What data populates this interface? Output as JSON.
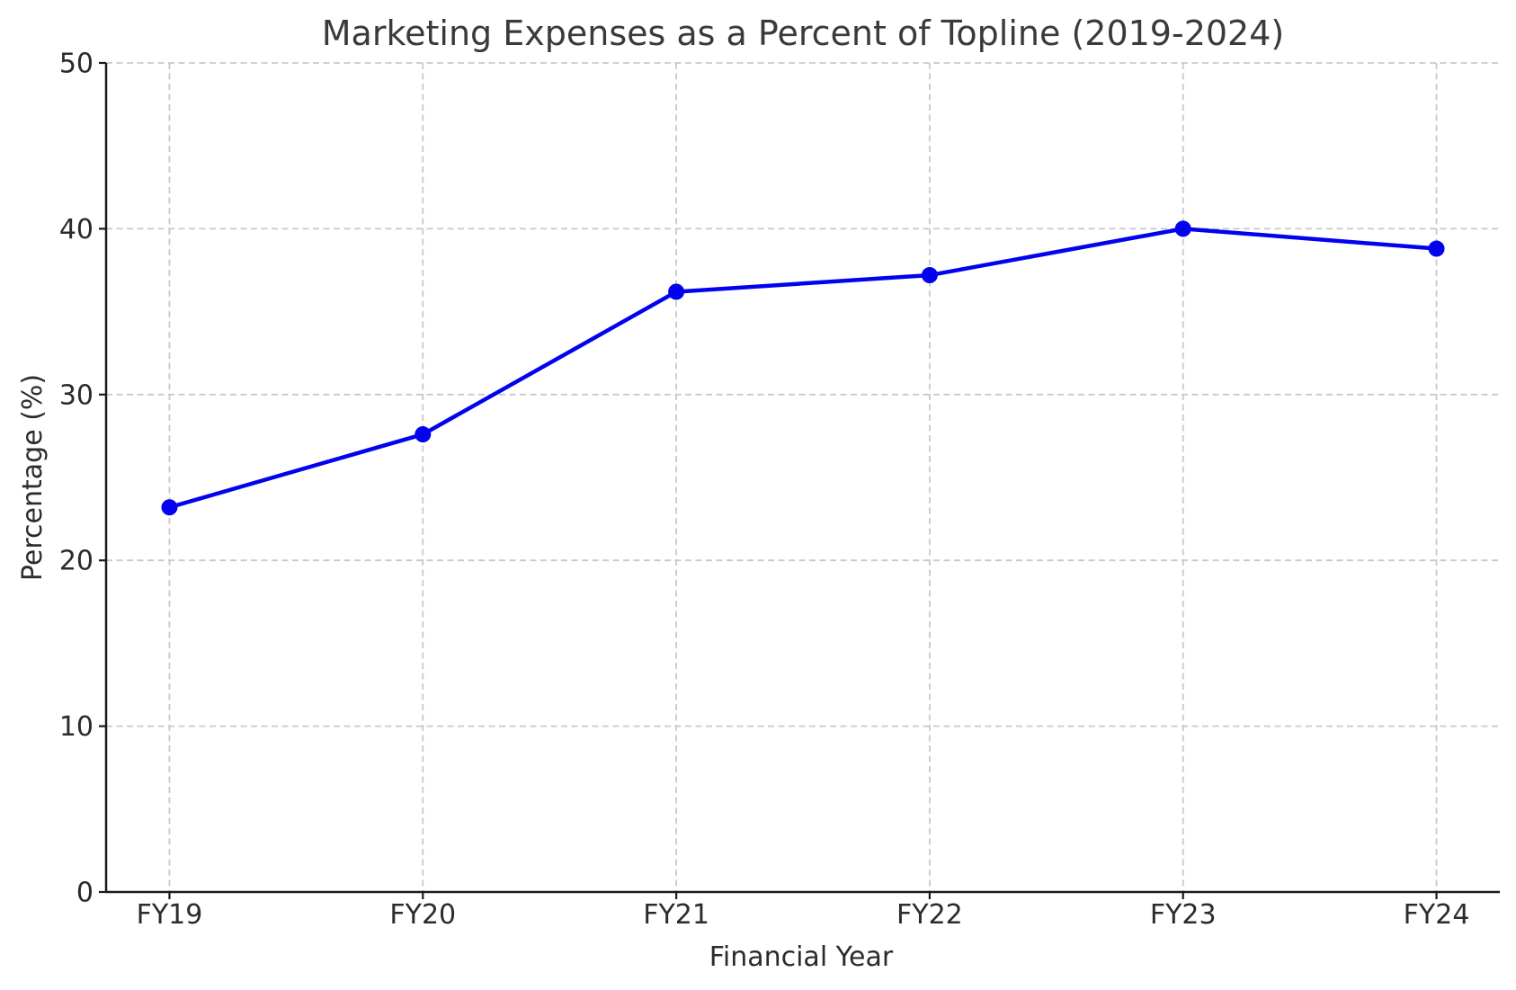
{
  "figure": {
    "background": "#ffffff"
  },
  "chart_data": {
    "type": "line",
    "title": "Marketing Expenses as a Percent of Topline (2019-2024)",
    "xlabel": "Financial Year",
    "ylabel": "Percentage (%)",
    "categories": [
      "FY19",
      "FY20",
      "FY21",
      "FY22",
      "FY23",
      "FY24"
    ],
    "values": [
      23.2,
      27.6,
      36.2,
      37.2,
      40.0,
      38.8
    ],
    "ylim": [
      0,
      50
    ],
    "yticks": [
      0,
      10,
      20,
      30,
      40,
      50
    ],
    "grid": {
      "visible": true,
      "style": "dashed",
      "color": "#c9c9c9"
    },
    "legend": "none",
    "marker": "circle",
    "line_color": "#0202ee",
    "marker_color": "#0202ee",
    "spine_color": "#1a1a1a",
    "title_color": "#3a3a3a",
    "label_color": "#2b2b2b",
    "tick_label_color": "#2b2b2b"
  }
}
